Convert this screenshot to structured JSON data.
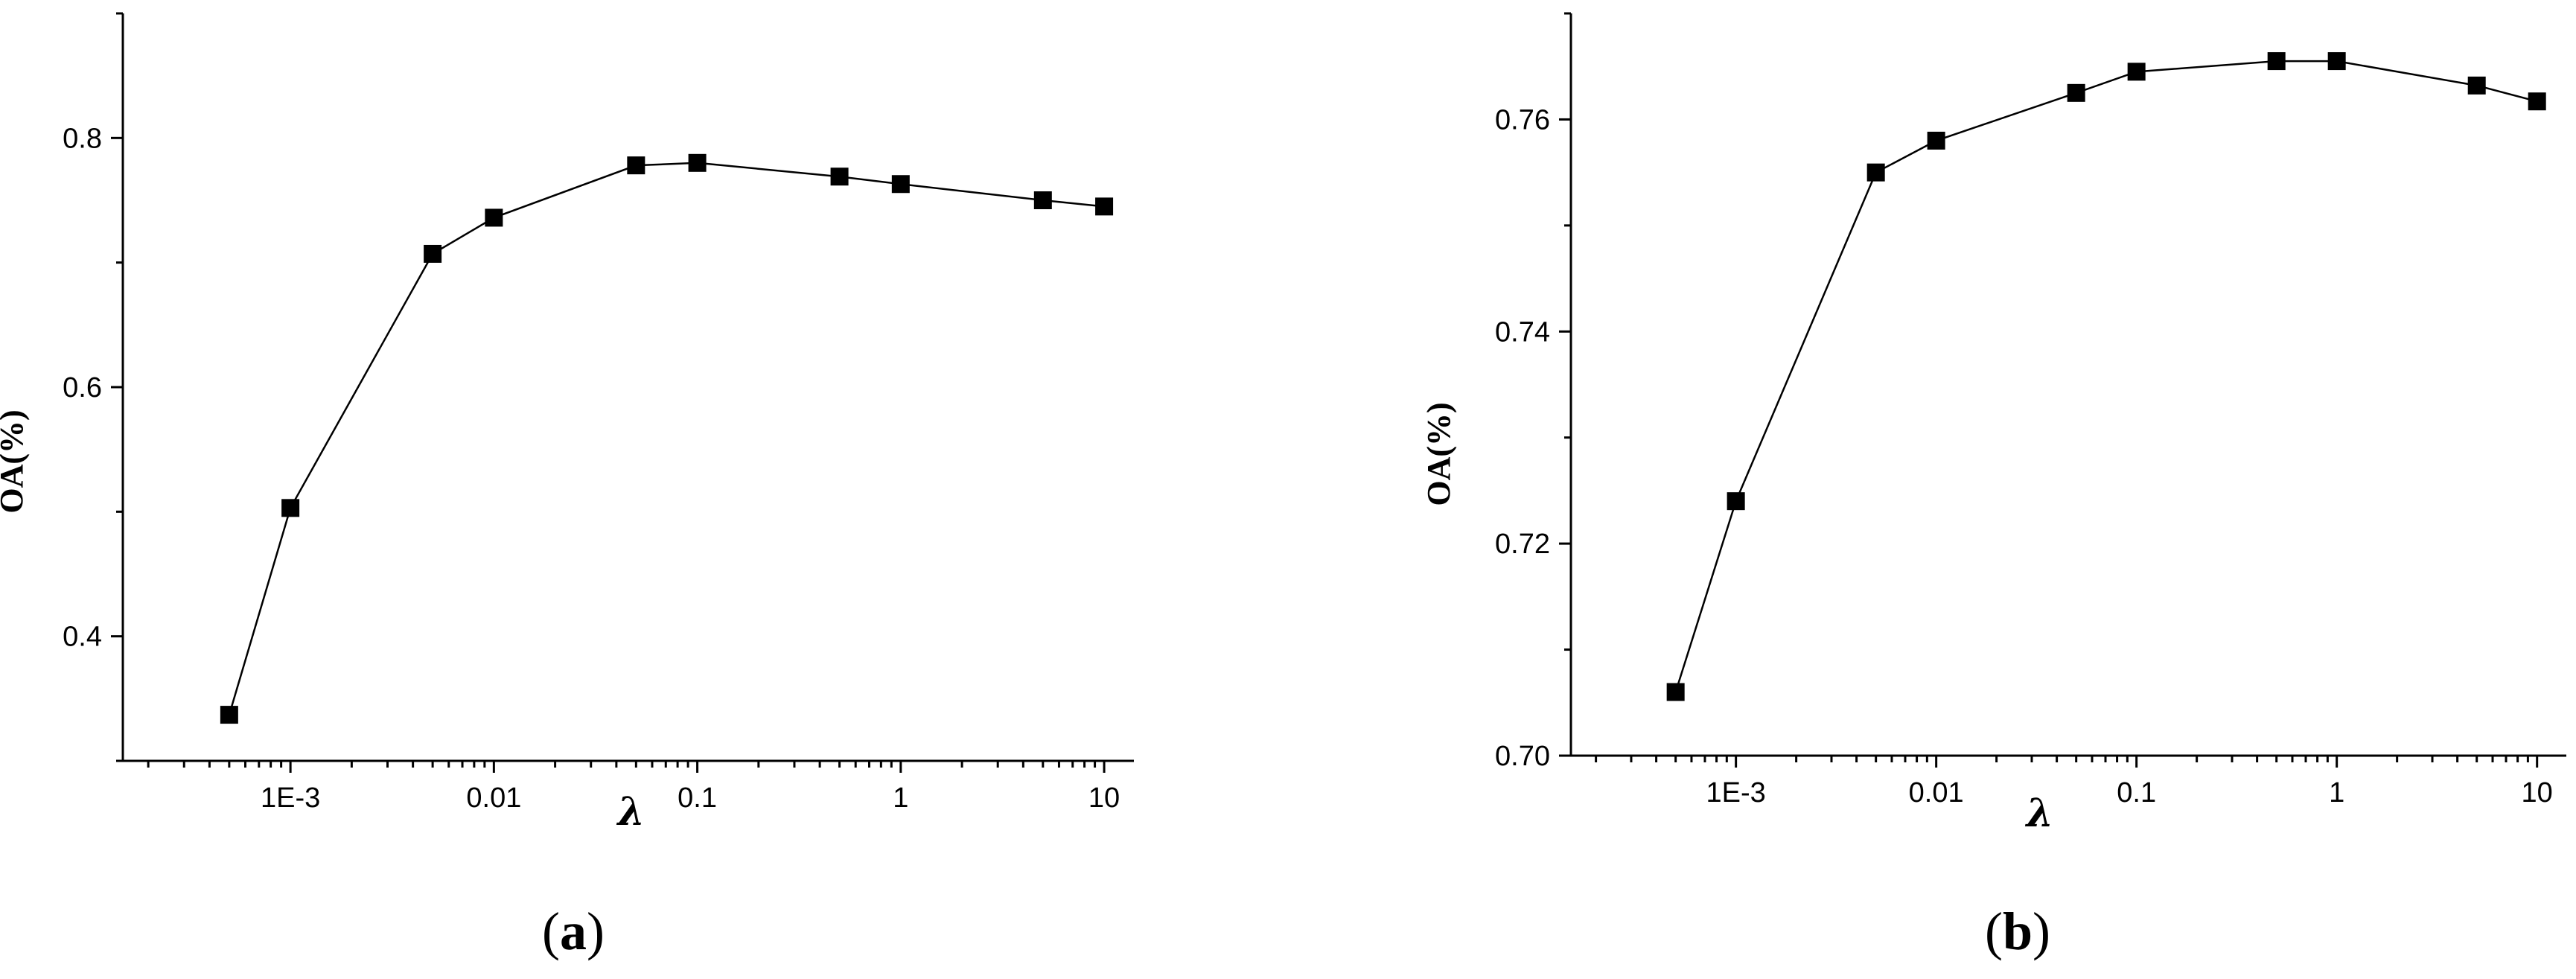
{
  "chart_data": [
    {
      "type": "line",
      "panel_label": {
        "open": "(",
        "letter": "a",
        "close": ")"
      },
      "xlabel": "λ",
      "ylabel": "OA(%)",
      "xscale": "log",
      "xlim": [
        0.00015,
        14
      ],
      "ylim": [
        0.3,
        0.9
      ],
      "xticks": [
        0.001,
        0.01,
        0.1,
        1,
        10
      ],
      "xtick_labels": [
        "1E-3",
        "0.01",
        "0.1",
        "1",
        "10"
      ],
      "yticks": [
        0.4,
        0.6,
        0.8
      ],
      "ytick_labels": [
        "0.4",
        "0.6",
        "0.8"
      ],
      "yminor": [
        0.3,
        0.5,
        0.7,
        0.9
      ],
      "marker": "square",
      "color": "#000000",
      "series": [
        {
          "x": [
            0.0005,
            0.001,
            0.005,
            0.01,
            0.05,
            0.1,
            0.5,
            1,
            5,
            10
          ],
          "y": [
            0.337,
            0.503,
            0.707,
            0.736,
            0.778,
            0.78,
            0.769,
            0.763,
            0.75,
            0.745
          ]
        }
      ]
    },
    {
      "type": "line",
      "panel_label": {
        "open": "(",
        "letter": "b",
        "close": ")"
      },
      "xlabel": "λ",
      "ylabel": "OA(%)",
      "xscale": "log",
      "xlim": [
        0.00015,
        14
      ],
      "ylim": [
        0.7,
        0.77
      ],
      "xticks": [
        0.001,
        0.01,
        0.1,
        1,
        10
      ],
      "xtick_labels": [
        "1E-3",
        "0.01",
        "0.1",
        "1",
        "10"
      ],
      "yticks": [
        0.7,
        0.72,
        0.74,
        0.76
      ],
      "ytick_labels": [
        "0.70",
        "0.72",
        "0.74",
        "0.76"
      ],
      "yminor": [
        0.71,
        0.73,
        0.75,
        0.77
      ],
      "marker": "square",
      "color": "#000000",
      "series": [
        {
          "x": [
            0.0005,
            0.001,
            0.005,
            0.01,
            0.05,
            0.1,
            0.5,
            1,
            5,
            10
          ],
          "y": [
            0.706,
            0.724,
            0.755,
            0.758,
            0.7625,
            0.7645,
            0.7655,
            0.7655,
            0.7632,
            0.7617
          ]
        }
      ]
    }
  ]
}
